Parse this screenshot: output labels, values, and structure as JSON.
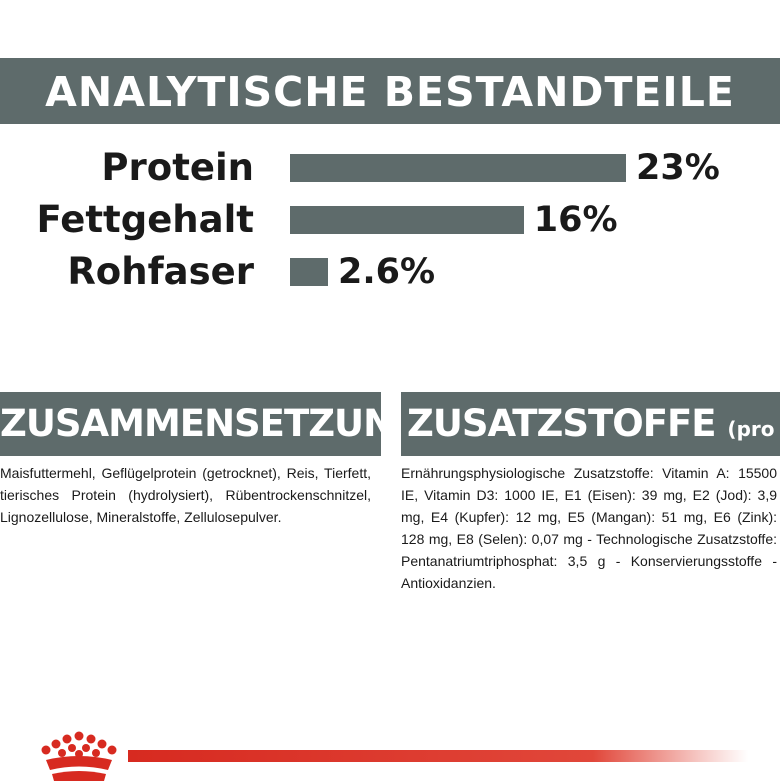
{
  "header": {
    "title": "ANALYTISCHE BESTANDTEILE"
  },
  "nutrients": [
    {
      "name": "Protein",
      "value_label": "23%",
      "value": 23
    },
    {
      "name": "Fettgehalt",
      "value_label": "16%",
      "value": 16
    },
    {
      "name": "Rohfaser",
      "value_label": "2.6%",
      "value": 2.6
    }
  ],
  "composition": {
    "title": "ZUSAMMENSETZUNG",
    "text": "Maisfuttermehl, Geflügelprotein (getrocknet), Reis, Tierfett, tierisches Protein (hydrolysiert), Rübentrockenschnitzel, Lignozellulose, Mineralstoffe, Zellulosepulver."
  },
  "additives": {
    "title": "ZUSATZSTOFFE",
    "title_suffix": "(pro kg)",
    "text": "Ernährungsphysiologische Zusatzstoffe: Vitamin A: 15500 IE, Vitamin D3: 1000 IE, E1 (Eisen): 39 mg, E2 (Jod): 3,9 mg, E4 (Kupfer): 12 mg, E5 (Mangan): 51 mg, E6 (Zink): 128 mg, E8 (Selen): 0,07 mg - Technologische Zusatzstoffe: Pentanatriumtriphosphat: 3,5 g - Konservierungsstoffe - Antioxidanzien."
  },
  "colors": {
    "banner": "#5e6b6b",
    "brand_red": "#d72a20",
    "text": "#1a1a1a"
  },
  "icons": {
    "brand": "crown-icon"
  }
}
